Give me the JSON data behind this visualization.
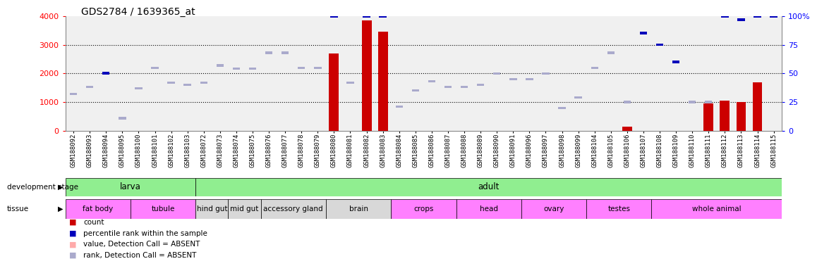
{
  "title": "GDS2784 / 1639365_at",
  "samples": [
    "GSM188092",
    "GSM188093",
    "GSM188094",
    "GSM188095",
    "GSM188100",
    "GSM188101",
    "GSM188102",
    "GSM188103",
    "GSM188072",
    "GSM188073",
    "GSM188074",
    "GSM188075",
    "GSM188076",
    "GSM188077",
    "GSM188078",
    "GSM188079",
    "GSM188080",
    "GSM188081",
    "GSM188082",
    "GSM188083",
    "GSM188084",
    "GSM188085",
    "GSM188086",
    "GSM188087",
    "GSM188088",
    "GSM188089",
    "GSM188090",
    "GSM188091",
    "GSM188096",
    "GSM188097",
    "GSM188098",
    "GSM188099",
    "GSM188104",
    "GSM188105",
    "GSM188106",
    "GSM188107",
    "GSM188108",
    "GSM188109",
    "GSM188110",
    "GSM188111",
    "GSM188112",
    "GSM188113",
    "GSM188114",
    "GSM188115"
  ],
  "count_values": [
    0,
    0,
    0,
    0,
    0,
    0,
    0,
    0,
    0,
    0,
    0,
    0,
    0,
    0,
    0,
    0,
    2700,
    0,
    3850,
    3450,
    0,
    0,
    0,
    0,
    0,
    0,
    0,
    0,
    0,
    0,
    0,
    0,
    0,
    0,
    150,
    0,
    0,
    0,
    0,
    950,
    1050,
    1000,
    1700,
    0
  ],
  "count_absent": [
    true,
    true,
    true,
    true,
    true,
    true,
    true,
    true,
    true,
    true,
    true,
    true,
    true,
    true,
    true,
    true,
    false,
    true,
    false,
    false,
    true,
    true,
    true,
    true,
    true,
    true,
    true,
    true,
    true,
    true,
    true,
    true,
    true,
    true,
    false,
    true,
    true,
    true,
    true,
    false,
    false,
    false,
    false,
    true
  ],
  "rank_values": [
    32,
    38,
    50,
    11,
    37,
    55,
    42,
    40,
    42,
    57,
    54,
    54,
    68,
    68,
    55,
    55,
    100,
    42,
    100,
    100,
    21,
    35,
    43,
    38,
    38,
    40,
    50,
    45,
    45,
    50,
    20,
    29,
    55,
    68,
    25,
    85,
    75,
    60,
    25,
    25,
    100,
    97,
    100,
    100
  ],
  "rank_absent": [
    true,
    true,
    false,
    true,
    true,
    true,
    true,
    true,
    true,
    true,
    true,
    true,
    true,
    true,
    true,
    true,
    false,
    true,
    false,
    false,
    true,
    true,
    true,
    true,
    true,
    true,
    true,
    true,
    true,
    true,
    true,
    true,
    true,
    true,
    true,
    false,
    false,
    false,
    true,
    true,
    false,
    false,
    false,
    false
  ],
  "development_stage": [
    {
      "label": "larva",
      "start": 0,
      "end": 8,
      "color": "#90EE90"
    },
    {
      "label": "adult",
      "start": 8,
      "end": 44,
      "color": "#90EE90"
    }
  ],
  "tissues": [
    {
      "label": "fat body",
      "start": 0,
      "end": 4,
      "color": "#FF80FF"
    },
    {
      "label": "tubule",
      "start": 4,
      "end": 8,
      "color": "#FF80FF"
    },
    {
      "label": "hind gut",
      "start": 8,
      "end": 10,
      "color": "#D8D8D8"
    },
    {
      "label": "mid gut",
      "start": 10,
      "end": 12,
      "color": "#D8D8D8"
    },
    {
      "label": "accessory gland",
      "start": 12,
      "end": 16,
      "color": "#D8D8D8"
    },
    {
      "label": "brain",
      "start": 16,
      "end": 20,
      "color": "#D8D8D8"
    },
    {
      "label": "crops",
      "start": 20,
      "end": 24,
      "color": "#FF80FF"
    },
    {
      "label": "head",
      "start": 24,
      "end": 28,
      "color": "#FF80FF"
    },
    {
      "label": "ovary",
      "start": 28,
      "end": 32,
      "color": "#FF80FF"
    },
    {
      "label": "testes",
      "start": 32,
      "end": 36,
      "color": "#FF80FF"
    },
    {
      "label": "whole animal",
      "start": 36,
      "end": 44,
      "color": "#FF80FF"
    }
  ],
  "ylim_left": [
    0,
    4000
  ],
  "ylim_right": [
    0,
    100
  ],
  "yticks_left": [
    0,
    1000,
    2000,
    3000,
    4000
  ],
  "yticks_right": [
    0,
    25,
    50,
    75,
    100
  ],
  "bar_color": "#CC0000",
  "rank_color": "#0000BB",
  "rank_absent_color": "#AAAACC",
  "count_absent_color": "#FFAAAA",
  "plot_bg_color": "#F0F0F0",
  "bg_color": "#FFFFFF",
  "title_fontsize": 10,
  "tick_fontsize": 6.5
}
